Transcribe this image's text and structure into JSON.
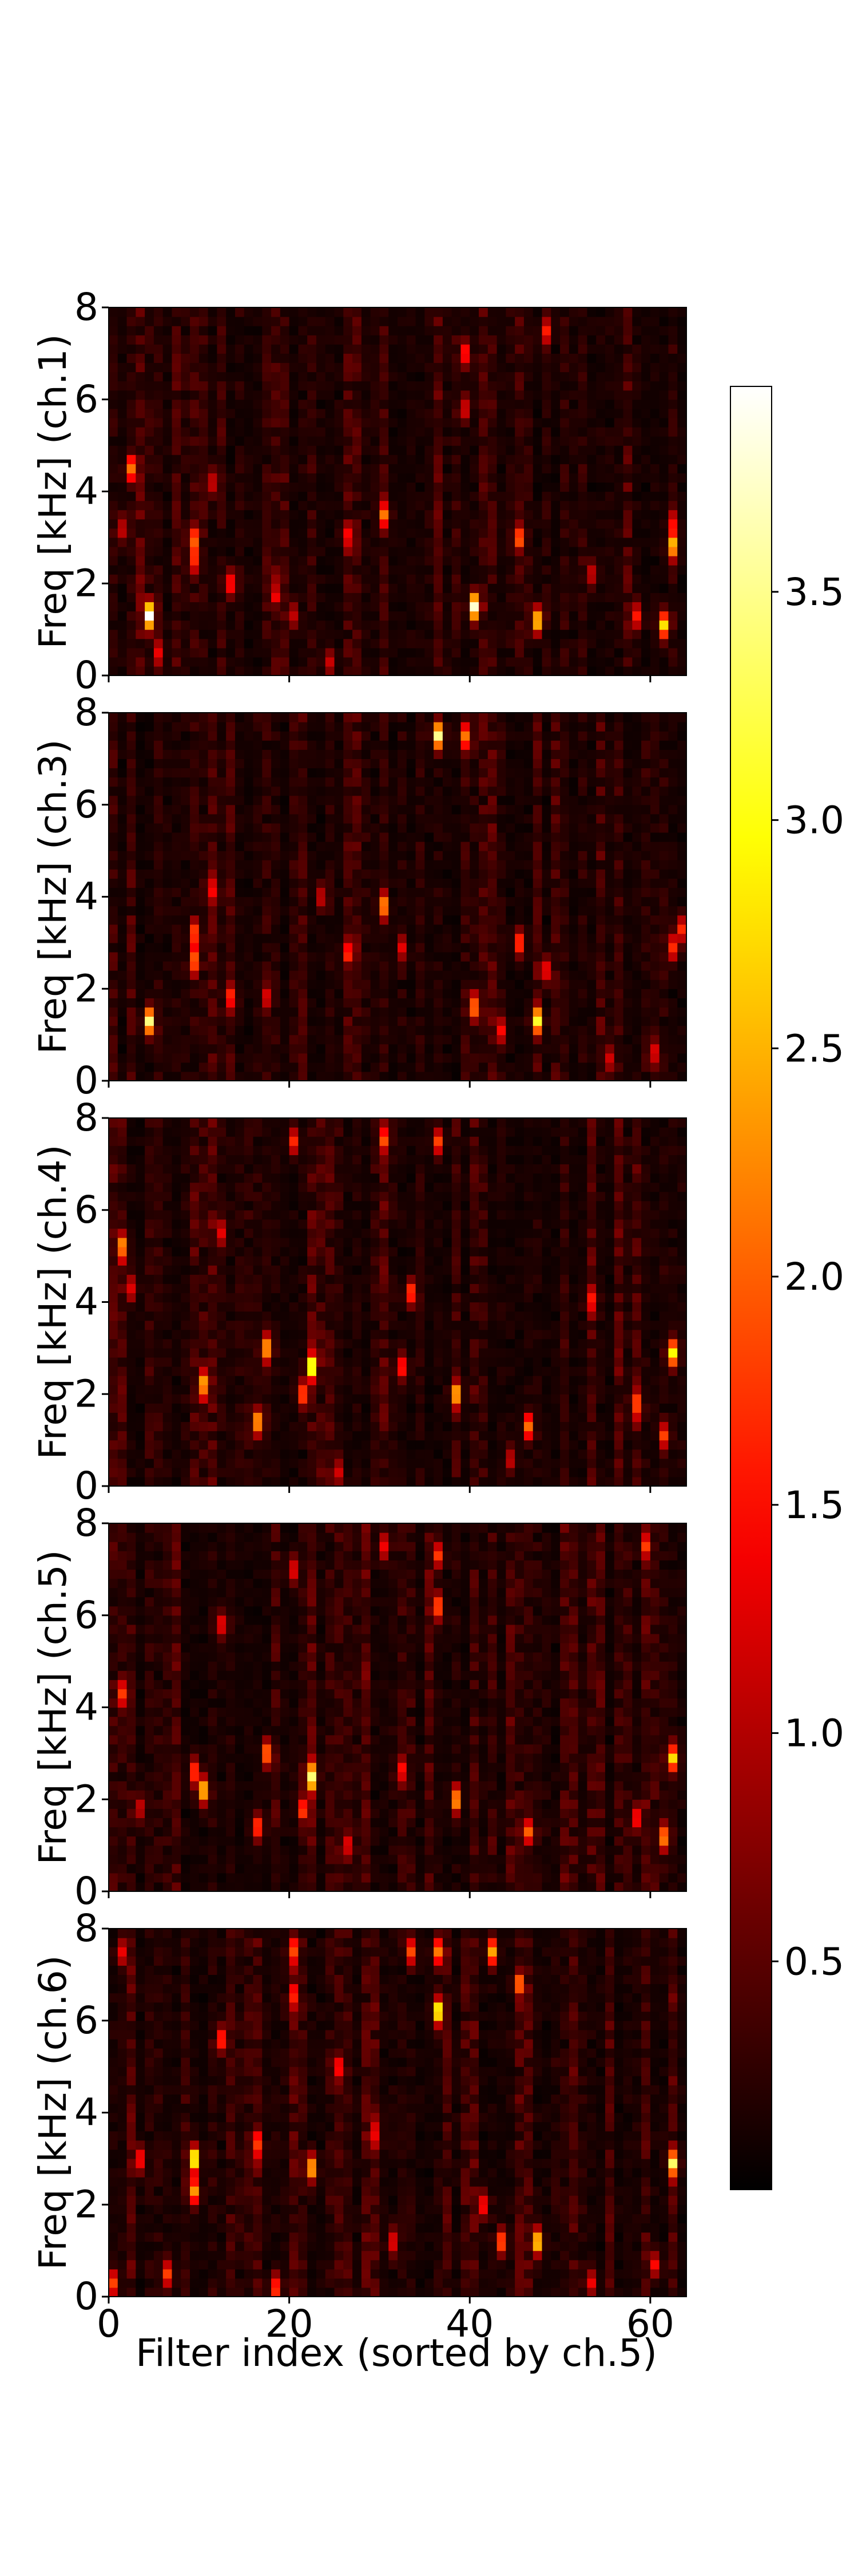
{
  "chart_data": {
    "type": "heatmap",
    "colormap": "hot",
    "colorbar": {
      "range": [
        0,
        3.95
      ],
      "ticks": [
        0.5,
        1.0,
        1.5,
        2.0,
        2.5,
        3.0,
        3.5
      ],
      "tick_labels": [
        "0.5",
        "1.0",
        "1.5",
        "2.0",
        "2.5",
        "3.0",
        "3.5"
      ]
    },
    "xlabel": "Filter index (sorted by ch.5)",
    "x_range": [
      0,
      64
    ],
    "x_ticks": [
      0,
      20,
      40,
      60
    ],
    "x_tick_labels": [
      "0",
      "20",
      "40",
      "60"
    ],
    "y_range": [
      0,
      8
    ],
    "y_ticks": [
      0,
      2,
      4,
      6,
      8
    ],
    "y_tick_labels": [
      "0",
      "2",
      "4",
      "6",
      "8"
    ],
    "panels": [
      {
        "ylabel": "Freq [kHz] (ch.1)",
        "hotspots": [
          {
            "x": 4,
            "y": 1.3,
            "v": 3.8
          },
          {
            "x": 2,
            "y": 4.5,
            "v": 2.0
          },
          {
            "x": 9,
            "y": 3.0,
            "v": 1.5
          },
          {
            "x": 9,
            "y": 2.5,
            "v": 1.3
          },
          {
            "x": 13,
            "y": 2.0,
            "v": 1.4
          },
          {
            "x": 11,
            "y": 4.2,
            "v": 1.0
          },
          {
            "x": 20,
            "y": 1.3,
            "v": 1.0
          },
          {
            "x": 26,
            "y": 3.0,
            "v": 1.1
          },
          {
            "x": 30,
            "y": 3.5,
            "v": 1.9
          },
          {
            "x": 40,
            "y": 1.5,
            "v": 3.6
          },
          {
            "x": 39,
            "y": 7.0,
            "v": 1.5
          },
          {
            "x": 39,
            "y": 5.8,
            "v": 1.1
          },
          {
            "x": 45,
            "y": 3.0,
            "v": 1.8
          },
          {
            "x": 47,
            "y": 1.2,
            "v": 2.6
          },
          {
            "x": 48,
            "y": 7.5,
            "v": 1.4
          },
          {
            "x": 58,
            "y": 1.3,
            "v": 1.4
          },
          {
            "x": 61,
            "y": 1.1,
            "v": 2.7
          },
          {
            "x": 62,
            "y": 2.8,
            "v": 2.3
          },
          {
            "x": 62,
            "y": 3.3,
            "v": 1.2
          },
          {
            "x": 1,
            "y": 3.2,
            "v": 1.0
          },
          {
            "x": 18,
            "y": 1.8,
            "v": 1.0
          },
          {
            "x": 5,
            "y": 0.5,
            "v": 1.0
          },
          {
            "x": 24,
            "y": 0.3,
            "v": 1.0
          },
          {
            "x": 53,
            "y": 2.2,
            "v": 1.0
          }
        ]
      },
      {
        "ylabel": "Freq [kHz] (ch.3)",
        "hotspots": [
          {
            "x": 4,
            "y": 1.3,
            "v": 3.3
          },
          {
            "x": 9,
            "y": 2.6,
            "v": 1.9
          },
          {
            "x": 9,
            "y": 3.2,
            "v": 1.6
          },
          {
            "x": 13,
            "y": 1.8,
            "v": 1.3
          },
          {
            "x": 26,
            "y": 2.8,
            "v": 1.2
          },
          {
            "x": 30,
            "y": 3.8,
            "v": 2.0
          },
          {
            "x": 36,
            "y": 7.5,
            "v": 3.3
          },
          {
            "x": 39,
            "y": 7.5,
            "v": 2.0
          },
          {
            "x": 40,
            "y": 1.6,
            "v": 2.0
          },
          {
            "x": 45,
            "y": 3.0,
            "v": 1.7
          },
          {
            "x": 47,
            "y": 1.3,
            "v": 2.8
          },
          {
            "x": 48,
            "y": 2.4,
            "v": 1.3
          },
          {
            "x": 62,
            "y": 2.9,
            "v": 1.6
          },
          {
            "x": 63,
            "y": 3.3,
            "v": 1.5
          },
          {
            "x": 43,
            "y": 1.1,
            "v": 1.3
          },
          {
            "x": 32,
            "y": 2.9,
            "v": 1.1
          },
          {
            "x": 17,
            "y": 1.8,
            "v": 1.1
          },
          {
            "x": 23,
            "y": 4.0,
            "v": 1.0
          },
          {
            "x": 11,
            "y": 4.2,
            "v": 1.0
          },
          {
            "x": 60,
            "y": 0.6,
            "v": 1.1
          },
          {
            "x": 55,
            "y": 0.5,
            "v": 1.0
          }
        ]
      },
      {
        "ylabel": "Freq [kHz] (ch.4)",
        "hotspots": [
          {
            "x": 1,
            "y": 5.2,
            "v": 1.8
          },
          {
            "x": 2,
            "y": 4.3,
            "v": 1.2
          },
          {
            "x": 10,
            "y": 2.2,
            "v": 2.2
          },
          {
            "x": 16,
            "y": 1.4,
            "v": 2.2
          },
          {
            "x": 17,
            "y": 3.0,
            "v": 2.3
          },
          {
            "x": 22,
            "y": 2.6,
            "v": 2.9
          },
          {
            "x": 21,
            "y": 2.0,
            "v": 1.8
          },
          {
            "x": 33,
            "y": 4.2,
            "v": 1.7
          },
          {
            "x": 32,
            "y": 2.6,
            "v": 1.5
          },
          {
            "x": 38,
            "y": 2.0,
            "v": 2.1
          },
          {
            "x": 36,
            "y": 7.5,
            "v": 1.6
          },
          {
            "x": 30,
            "y": 7.5,
            "v": 1.4
          },
          {
            "x": 20,
            "y": 7.5,
            "v": 1.5
          },
          {
            "x": 46,
            "y": 1.3,
            "v": 2.0
          },
          {
            "x": 62,
            "y": 2.9,
            "v": 2.8
          },
          {
            "x": 58,
            "y": 1.8,
            "v": 1.4
          },
          {
            "x": 61,
            "y": 1.1,
            "v": 1.5
          },
          {
            "x": 12,
            "y": 5.5,
            "v": 1.1
          },
          {
            "x": 53,
            "y": 4.0,
            "v": 1.1
          },
          {
            "x": 44,
            "y": 0.6,
            "v": 1.0
          },
          {
            "x": 25,
            "y": 0.3,
            "v": 1.0
          }
        ]
      },
      {
        "ylabel": "Freq [kHz] (ch.5)",
        "hotspots": [
          {
            "x": 1,
            "y": 4.3,
            "v": 1.6
          },
          {
            "x": 9,
            "y": 2.6,
            "v": 1.7
          },
          {
            "x": 10,
            "y": 2.2,
            "v": 2.6
          },
          {
            "x": 12,
            "y": 5.8,
            "v": 1.2
          },
          {
            "x": 16,
            "y": 1.4,
            "v": 1.7
          },
          {
            "x": 17,
            "y": 3.0,
            "v": 2.0
          },
          {
            "x": 22,
            "y": 2.5,
            "v": 3.0
          },
          {
            "x": 21,
            "y": 1.8,
            "v": 1.5
          },
          {
            "x": 20,
            "y": 7.0,
            "v": 1.2
          },
          {
            "x": 30,
            "y": 7.5,
            "v": 1.3
          },
          {
            "x": 36,
            "y": 7.3,
            "v": 1.5
          },
          {
            "x": 36,
            "y": 6.2,
            "v": 1.8
          },
          {
            "x": 38,
            "y": 2.0,
            "v": 2.2
          },
          {
            "x": 46,
            "y": 1.3,
            "v": 1.6
          },
          {
            "x": 58,
            "y": 1.6,
            "v": 1.4
          },
          {
            "x": 61,
            "y": 1.2,
            "v": 2.0
          },
          {
            "x": 62,
            "y": 2.9,
            "v": 2.6
          },
          {
            "x": 59,
            "y": 7.5,
            "v": 1.4
          },
          {
            "x": 32,
            "y": 2.6,
            "v": 1.2
          },
          {
            "x": 26,
            "y": 1.0,
            "v": 1.0
          },
          {
            "x": 3,
            "y": 1.8,
            "v": 1.0
          }
        ]
      },
      {
        "ylabel": "Freq [kHz] (ch.6)",
        "hotspots": [
          {
            "x": 1,
            "y": 7.5,
            "v": 1.2
          },
          {
            "x": 3,
            "y": 3.0,
            "v": 1.4
          },
          {
            "x": 9,
            "y": 3.0,
            "v": 2.9
          },
          {
            "x": 9,
            "y": 2.3,
            "v": 2.2
          },
          {
            "x": 12,
            "y": 5.6,
            "v": 1.6
          },
          {
            "x": 16,
            "y": 3.3,
            "v": 1.5
          },
          {
            "x": 20,
            "y": 7.5,
            "v": 1.5
          },
          {
            "x": 22,
            "y": 2.8,
            "v": 2.3
          },
          {
            "x": 20,
            "y": 6.5,
            "v": 1.2
          },
          {
            "x": 33,
            "y": 7.5,
            "v": 1.6
          },
          {
            "x": 36,
            "y": 7.5,
            "v": 2.0
          },
          {
            "x": 36,
            "y": 6.2,
            "v": 2.8
          },
          {
            "x": 42,
            "y": 7.5,
            "v": 2.3
          },
          {
            "x": 45,
            "y": 6.8,
            "v": 1.6
          },
          {
            "x": 43,
            "y": 1.2,
            "v": 1.9
          },
          {
            "x": 47,
            "y": 1.2,
            "v": 2.6
          },
          {
            "x": 62,
            "y": 2.9,
            "v": 2.7
          },
          {
            "x": 41,
            "y": 2.0,
            "v": 1.4
          },
          {
            "x": 6,
            "y": 0.5,
            "v": 1.6
          },
          {
            "x": 0,
            "y": 0.3,
            "v": 1.7
          },
          {
            "x": 18,
            "y": 0.2,
            "v": 1.6
          },
          {
            "x": 29,
            "y": 3.5,
            "v": 1.2
          },
          {
            "x": 53,
            "y": 0.3,
            "v": 1.2
          },
          {
            "x": 60,
            "y": 0.7,
            "v": 1.3
          },
          {
            "x": 25,
            "y": 5.0,
            "v": 1.1
          },
          {
            "x": 31,
            "y": 1.2,
            "v": 1.2
          }
        ]
      }
    ]
  }
}
